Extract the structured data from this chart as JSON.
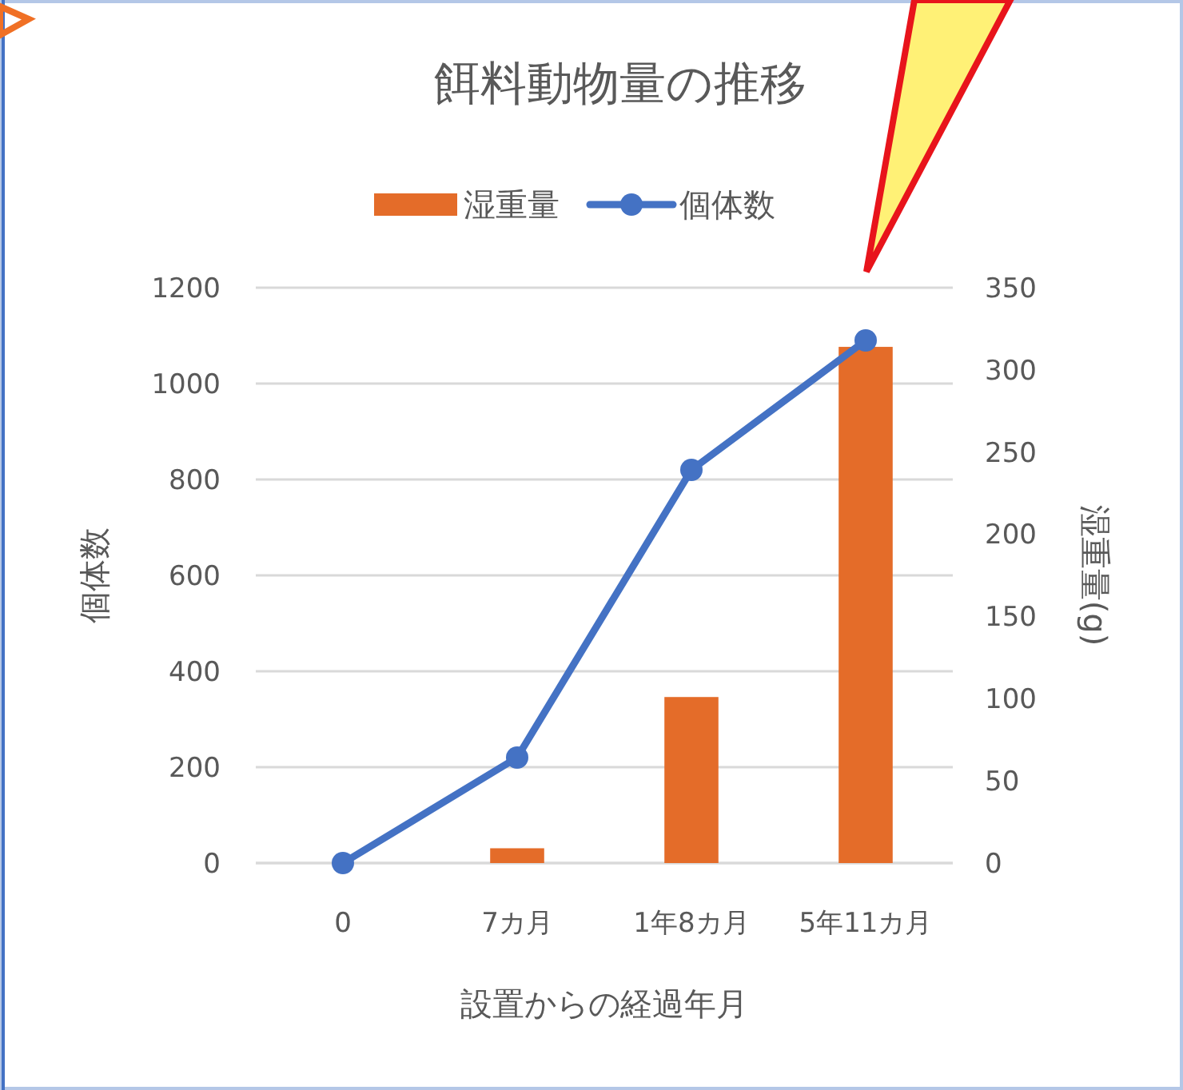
{
  "chart_data": {
    "type": "bar",
    "title": "餌料動物量の推移",
    "xlabel": "設置からの経過年月",
    "ylabel": "個体数",
    "y2label": "湿重量(g)",
    "categories": [
      "0",
      "7カ月",
      "1年8カ月",
      "5年11カ月"
    ],
    "series": [
      {
        "name": "湿重量",
        "type": "bar",
        "axis": "y2",
        "color": "#e46c29",
        "values": [
          0,
          9,
          101,
          314
        ]
      },
      {
        "name": "個体数",
        "type": "line",
        "color": "#4472c4",
        "values": [
          0,
          220,
          820,
          1090
        ],
        "marker": "circle"
      }
    ],
    "ylim": [
      0,
      1200
    ],
    "yticks": [
      0,
      200,
      400,
      600,
      800,
      1000,
      1200
    ],
    "y2lim": [
      0,
      350
    ],
    "y2ticks": [
      0,
      50,
      100,
      150,
      200,
      250,
      300,
      350
    ],
    "grid": "y",
    "legend": "top"
  }
}
